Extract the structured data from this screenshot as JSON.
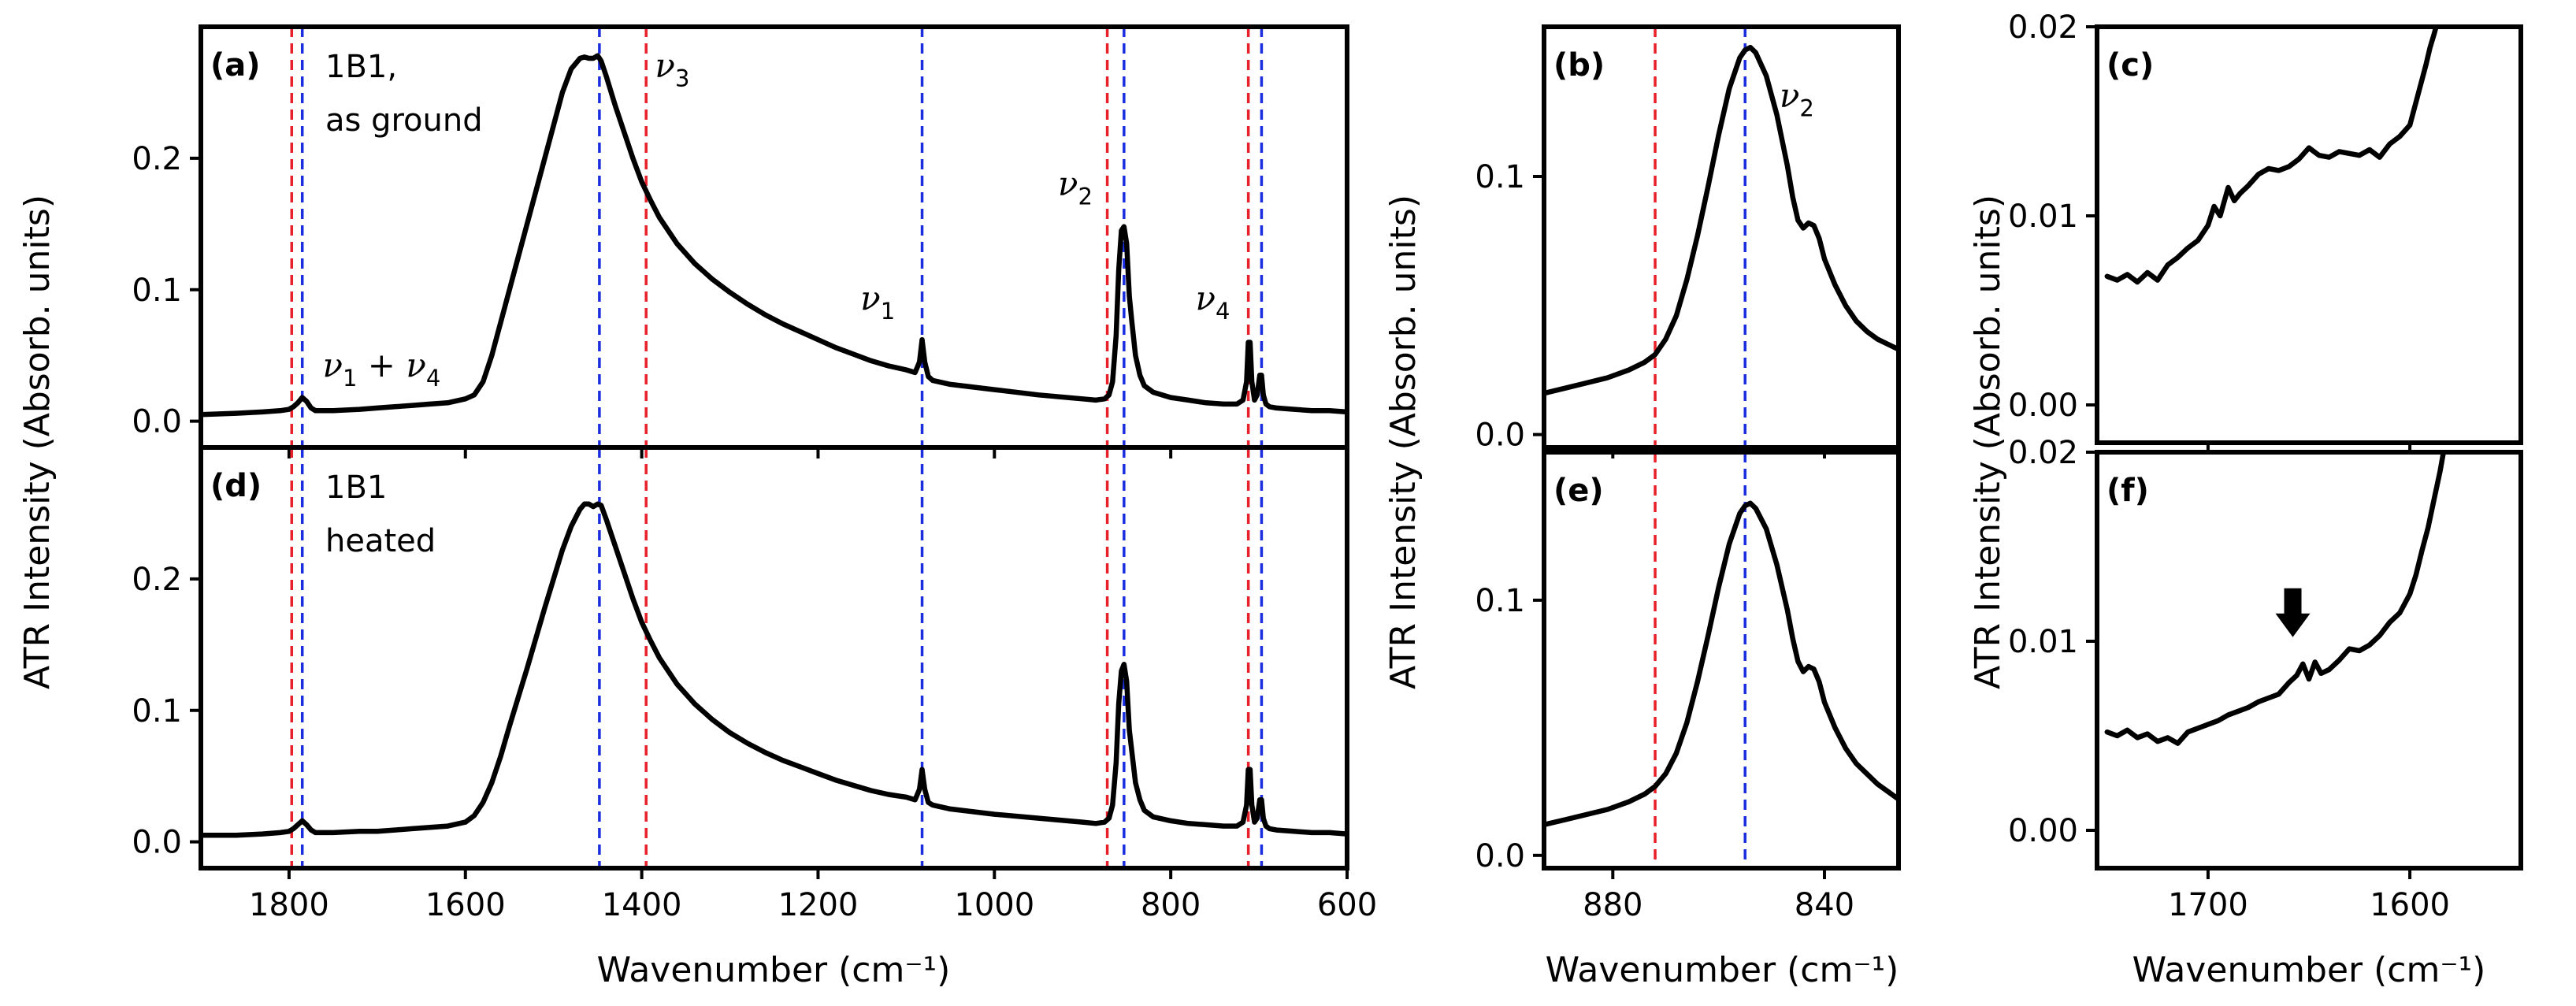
{
  "figure": {
    "colors": {
      "trace": "#000000",
      "ref_line_red": "#e8202a",
      "ref_line_blue": "#1a2ee0",
      "arrow": "#000000",
      "background": "#ffffff"
    },
    "shared_labels": {
      "ylabel_left": "ATR Intensity (Absorb. units)",
      "ylabel_middle": "ATR Intensity (Absorb. units)",
      "ylabel_right": "ATR Intensity (Absorb. units)",
      "xlabel_left": "Wavenumber (cm⁻¹)",
      "xlabel_middle": "Wavenumber (cm⁻¹)",
      "xlabel_right": "Wavenumber (cm⁻¹)"
    }
  },
  "chart_data": [
    {
      "id": "a",
      "type": "line",
      "panel_label": "(a)",
      "sample_note": [
        "1B1,",
        "as ground"
      ],
      "xlim": [
        1900,
        600
      ],
      "ylim": [
        -0.02,
        0.3
      ],
      "xticks": [
        1800,
        1600,
        1400,
        1200,
        1000,
        800,
        600
      ],
      "xtick_labels_shown": false,
      "yticks": [
        0.0,
        0.1,
        0.2
      ],
      "ytick_labels": [
        "0.0",
        "0.1",
        "0.2"
      ],
      "red_lines": [
        1797,
        1395,
        872,
        712
      ],
      "blue_lines": [
        1785,
        1448,
        1082,
        853,
        697
      ],
      "annotations": [
        {
          "text": "ν",
          "sub": "1",
          "tail": " + ν",
          "sub2": "4",
          "x": 1762,
          "y": 0.034
        },
        {
          "text": "ν",
          "sub": "3",
          "x": 1385,
          "y": 0.262
        },
        {
          "text": "ν",
          "sub": "1",
          "x": 1152,
          "y": 0.085
        },
        {
          "text": "ν",
          "sub": "2",
          "x": 928,
          "y": 0.172
        },
        {
          "text": "ν",
          "sub": "4",
          "x": 772,
          "y": 0.085
        }
      ],
      "series": [
        {
          "x": [
            1900,
            1860,
            1830,
            1810,
            1800,
            1795,
            1790,
            1785,
            1780,
            1775,
            1770,
            1750,
            1720,
            1700,
            1680,
            1660,
            1640,
            1620,
            1600,
            1590,
            1580,
            1570,
            1560,
            1550,
            1540,
            1530,
            1520,
            1510,
            1500,
            1490,
            1480,
            1470,
            1465,
            1460,
            1455,
            1450,
            1446,
            1440,
            1430,
            1420,
            1410,
            1400,
            1390,
            1380,
            1360,
            1340,
            1320,
            1300,
            1280,
            1260,
            1240,
            1220,
            1200,
            1180,
            1160,
            1140,
            1120,
            1100,
            1090,
            1085,
            1082,
            1079,
            1075,
            1070,
            1050,
            1000,
            950,
            900,
            885,
            875,
            870,
            866,
            862,
            859,
            856,
            853,
            850,
            847,
            844,
            840,
            835,
            830,
            820,
            800,
            780,
            760,
            740,
            725,
            718,
            714,
            712,
            710,
            708,
            705,
            702,
            699,
            697,
            695,
            692,
            688,
            680,
            660,
            640,
            620,
            600
          ],
          "y": [
            0.005,
            0.006,
            0.007,
            0.008,
            0.009,
            0.011,
            0.014,
            0.018,
            0.015,
            0.01,
            0.008,
            0.008,
            0.009,
            0.01,
            0.011,
            0.012,
            0.013,
            0.014,
            0.017,
            0.02,
            0.03,
            0.05,
            0.075,
            0.1,
            0.125,
            0.15,
            0.175,
            0.2,
            0.225,
            0.25,
            0.268,
            0.276,
            0.277,
            0.276,
            0.276,
            0.278,
            0.274,
            0.262,
            0.24,
            0.22,
            0.2,
            0.182,
            0.168,
            0.155,
            0.135,
            0.12,
            0.108,
            0.098,
            0.089,
            0.081,
            0.074,
            0.068,
            0.062,
            0.056,
            0.051,
            0.046,
            0.042,
            0.039,
            0.037,
            0.045,
            0.062,
            0.045,
            0.034,
            0.031,
            0.028,
            0.024,
            0.02,
            0.017,
            0.016,
            0.017,
            0.02,
            0.03,
            0.065,
            0.115,
            0.145,
            0.148,
            0.135,
            0.095,
            0.075,
            0.05,
            0.035,
            0.027,
            0.022,
            0.018,
            0.016,
            0.014,
            0.013,
            0.013,
            0.016,
            0.03,
            0.06,
            0.06,
            0.03,
            0.016,
            0.02,
            0.035,
            0.035,
            0.02,
            0.013,
            0.011,
            0.01,
            0.009,
            0.008,
            0.008,
            0.007
          ]
        }
      ]
    },
    {
      "id": "d",
      "type": "line",
      "panel_label": "(d)",
      "sample_note": [
        "1B1",
        "heated"
      ],
      "xlim": [
        1900,
        600
      ],
      "ylim": [
        -0.02,
        0.3
      ],
      "xticks": [
        1800,
        1600,
        1400,
        1200,
        1000,
        800,
        600
      ],
      "xtick_labels": [
        "1800",
        "1600",
        "1400",
        "1200",
        "1000",
        "800",
        "600"
      ],
      "yticks": [
        0.0,
        0.1,
        0.2
      ],
      "ytick_labels": [
        "0.0",
        "0.1",
        "0.2"
      ],
      "red_lines": [
        1797,
        1395,
        872,
        712
      ],
      "blue_lines": [
        1785,
        1448,
        1082,
        853,
        697
      ],
      "series": [
        {
          "x": [
            1900,
            1860,
            1830,
            1810,
            1800,
            1795,
            1790,
            1785,
            1780,
            1775,
            1770,
            1750,
            1720,
            1700,
            1680,
            1660,
            1640,
            1620,
            1600,
            1590,
            1580,
            1570,
            1560,
            1550,
            1540,
            1530,
            1520,
            1510,
            1500,
            1490,
            1480,
            1470,
            1465,
            1460,
            1455,
            1450,
            1446,
            1440,
            1430,
            1420,
            1410,
            1400,
            1390,
            1380,
            1360,
            1340,
            1320,
            1300,
            1280,
            1260,
            1240,
            1220,
            1200,
            1180,
            1160,
            1140,
            1120,
            1100,
            1090,
            1085,
            1082,
            1079,
            1075,
            1070,
            1050,
            1000,
            950,
            900,
            885,
            875,
            870,
            866,
            862,
            859,
            856,
            853,
            850,
            847,
            844,
            840,
            835,
            830,
            820,
            800,
            780,
            760,
            740,
            725,
            718,
            714,
            712,
            710,
            708,
            705,
            702,
            699,
            697,
            695,
            692,
            688,
            680,
            660,
            640,
            620,
            600
          ],
          "y": [
            0.005,
            0.005,
            0.006,
            0.007,
            0.008,
            0.01,
            0.013,
            0.016,
            0.013,
            0.009,
            0.007,
            0.007,
            0.008,
            0.008,
            0.009,
            0.01,
            0.011,
            0.012,
            0.015,
            0.02,
            0.03,
            0.045,
            0.065,
            0.088,
            0.11,
            0.132,
            0.155,
            0.178,
            0.2,
            0.222,
            0.24,
            0.253,
            0.257,
            0.257,
            0.255,
            0.257,
            0.256,
            0.245,
            0.225,
            0.205,
            0.185,
            0.167,
            0.153,
            0.14,
            0.12,
            0.105,
            0.093,
            0.083,
            0.075,
            0.068,
            0.062,
            0.057,
            0.052,
            0.047,
            0.043,
            0.039,
            0.036,
            0.034,
            0.032,
            0.04,
            0.055,
            0.04,
            0.03,
            0.028,
            0.025,
            0.021,
            0.018,
            0.015,
            0.014,
            0.015,
            0.018,
            0.028,
            0.06,
            0.105,
            0.13,
            0.135,
            0.122,
            0.085,
            0.068,
            0.045,
            0.032,
            0.024,
            0.019,
            0.016,
            0.014,
            0.013,
            0.012,
            0.012,
            0.015,
            0.028,
            0.055,
            0.055,
            0.028,
            0.015,
            0.018,
            0.032,
            0.032,
            0.018,
            0.012,
            0.01,
            0.009,
            0.008,
            0.007,
            0.007,
            0.006
          ]
        }
      ]
    },
    {
      "id": "b",
      "type": "line",
      "panel_label": "(b)",
      "xlim": [
        893,
        826
      ],
      "ylim": [
        -0.005,
        0.158
      ],
      "xticks": [
        880,
        840
      ],
      "xtick_labels_shown": false,
      "yticks": [
        0.0,
        0.1
      ],
      "ytick_labels": [
        "0.0",
        "0.1"
      ],
      "red_lines": [
        872
      ],
      "blue_lines": [
        855
      ],
      "annotations": [
        {
          "text": "ν",
          "sub": "2",
          "x": 848.5,
          "y": 0.127
        }
      ],
      "series": [
        {
          "x": [
            893,
            889,
            885,
            881,
            877,
            874,
            872,
            870,
            868,
            866,
            864,
            862,
            860,
            858,
            856,
            855,
            854,
            853,
            851,
            849,
            847,
            846,
            845,
            844,
            843,
            842,
            841,
            840,
            838,
            836,
            834,
            832,
            830,
            828,
            826
          ],
          "y": [
            0.016,
            0.018,
            0.02,
            0.022,
            0.025,
            0.028,
            0.031,
            0.037,
            0.046,
            0.06,
            0.077,
            0.096,
            0.116,
            0.134,
            0.146,
            0.149,
            0.15,
            0.148,
            0.139,
            0.124,
            0.104,
            0.092,
            0.083,
            0.08,
            0.082,
            0.081,
            0.076,
            0.068,
            0.058,
            0.05,
            0.044,
            0.04,
            0.037,
            0.035,
            0.033
          ]
        }
      ]
    },
    {
      "id": "e",
      "type": "line",
      "panel_label": "(e)",
      "xlim": [
        893,
        826
      ],
      "ylim": [
        -0.005,
        0.158
      ],
      "xticks": [
        880,
        840
      ],
      "xtick_labels": [
        "880",
        "840"
      ],
      "yticks": [
        0.0,
        0.1
      ],
      "ytick_labels": [
        "0.0",
        "0.1"
      ],
      "red_lines": [
        872
      ],
      "blue_lines": [
        855
      ],
      "series": [
        {
          "x": [
            893,
            889,
            885,
            881,
            877,
            874,
            872,
            870,
            868,
            866,
            864,
            862,
            860,
            858,
            856,
            855,
            854,
            853,
            851,
            849,
            847,
            846,
            845,
            844,
            843,
            842,
            841,
            840,
            838,
            836,
            834,
            832,
            830,
            828,
            826
          ],
          "y": [
            0.012,
            0.014,
            0.016,
            0.018,
            0.021,
            0.024,
            0.027,
            0.032,
            0.04,
            0.052,
            0.068,
            0.086,
            0.105,
            0.122,
            0.134,
            0.137,
            0.138,
            0.136,
            0.128,
            0.114,
            0.096,
            0.085,
            0.076,
            0.072,
            0.074,
            0.073,
            0.068,
            0.06,
            0.05,
            0.042,
            0.036,
            0.032,
            0.028,
            0.025,
            0.022
          ]
        }
      ]
    },
    {
      "id": "c",
      "type": "line",
      "panel_label": "(c)",
      "xlim": [
        1755,
        1545
      ],
      "ylim": [
        -0.002,
        0.02
      ],
      "xticks": [
        1700,
        1600
      ],
      "xtick_labels_shown": false,
      "yticks": [
        0.0,
        0.01,
        0.02
      ],
      "ytick_labels": [
        "0.00",
        "0.01",
        "0.02"
      ],
      "series": [
        {
          "x": [
            1750,
            1745,
            1740,
            1735,
            1730,
            1725,
            1720,
            1715,
            1710,
            1705,
            1700,
            1697,
            1694,
            1690,
            1687,
            1684,
            1680,
            1675,
            1670,
            1665,
            1660,
            1655,
            1650,
            1645,
            1640,
            1635,
            1630,
            1625,
            1620,
            1615,
            1610,
            1605,
            1600,
            1597,
            1594,
            1592,
            1590,
            1588,
            1586,
            1584,
            1582
          ],
          "y": [
            0.0068,
            0.0066,
            0.0069,
            0.0065,
            0.007,
            0.0066,
            0.0074,
            0.0078,
            0.0083,
            0.0087,
            0.0095,
            0.0105,
            0.01,
            0.0115,
            0.0108,
            0.0112,
            0.0116,
            0.0122,
            0.0125,
            0.0124,
            0.0126,
            0.013,
            0.0136,
            0.0132,
            0.0131,
            0.0134,
            0.0133,
            0.0132,
            0.0135,
            0.0131,
            0.0138,
            0.0142,
            0.0148,
            0.016,
            0.0172,
            0.018,
            0.0189,
            0.0196,
            0.0204,
            0.0212,
            0.022
          ]
        }
      ]
    },
    {
      "id": "f",
      "type": "line",
      "panel_label": "(f)",
      "xlim": [
        1755,
        1545
      ],
      "ylim": [
        -0.002,
        0.02
      ],
      "xticks": [
        1700,
        1600
      ],
      "xtick_labels": [
        "1700",
        "1600"
      ],
      "yticks": [
        0.0,
        0.01,
        0.02
      ],
      "ytick_labels": [
        "0.00",
        "0.01",
        "0.02"
      ],
      "arrow_marker": {
        "x": 1658,
        "y": 0.0098
      },
      "series": [
        {
          "x": [
            1750,
            1745,
            1740,
            1735,
            1730,
            1725,
            1720,
            1715,
            1710,
            1705,
            1700,
            1695,
            1690,
            1685,
            1680,
            1675,
            1670,
            1665,
            1660,
            1656,
            1653,
            1650,
            1647,
            1644,
            1640,
            1635,
            1630,
            1625,
            1620,
            1615,
            1610,
            1605,
            1600,
            1597,
            1594,
            1591,
            1588,
            1585,
            1582,
            1580
          ],
          "y": [
            0.0052,
            0.005,
            0.0053,
            0.0049,
            0.0051,
            0.0047,
            0.0049,
            0.0046,
            0.0052,
            0.0054,
            0.0056,
            0.0058,
            0.0061,
            0.0063,
            0.0065,
            0.0068,
            0.007,
            0.0072,
            0.0078,
            0.0082,
            0.0088,
            0.008,
            0.0089,
            0.0083,
            0.0085,
            0.009,
            0.0096,
            0.0095,
            0.0098,
            0.0103,
            0.011,
            0.0115,
            0.0125,
            0.0135,
            0.0148,
            0.016,
            0.0175,
            0.019,
            0.0208,
            0.0222
          ]
        }
      ]
    }
  ]
}
